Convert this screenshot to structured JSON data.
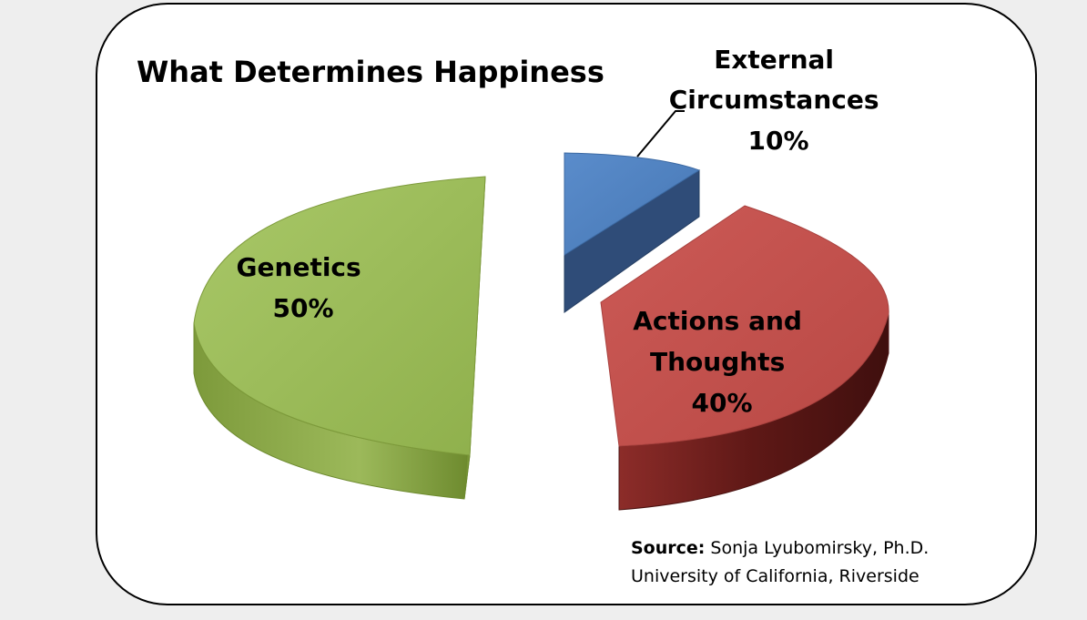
{
  "chart_data": {
    "type": "pie",
    "title": "What Determines Happiness",
    "slices": [
      {
        "label_lines": [
          "External",
          "Circumstances"
        ],
        "value_label": "10%",
        "value": 10,
        "color": "#4F81BD",
        "side_color": "#2E4A73",
        "exploded": true
      },
      {
        "label_lines": [
          "Actions and",
          "Thoughts"
        ],
        "value_label": "40%",
        "value": 40,
        "color": "#C0504D",
        "side_color": "#6B1F1D",
        "exploded": false
      },
      {
        "label_lines": [
          "Genetics"
        ],
        "value_label": "50%",
        "value": 50,
        "color": "#9BBB59",
        "side_color": "#6E8A33",
        "exploded": false
      }
    ],
    "legend": "none",
    "style": "3d"
  },
  "source": {
    "label": "Source:",
    "line1": " Sonja Lyubomirsky, Ph.D.",
    "line2": "University of California, Riverside"
  }
}
